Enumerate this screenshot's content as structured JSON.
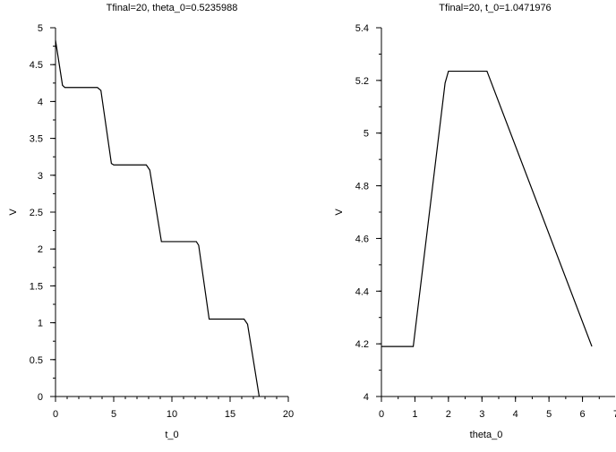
{
  "chart_data": [
    {
      "type": "line",
      "title": "Tfinal=20, theta_0=0.5235988",
      "xlabel": "t_0",
      "ylabel": "V",
      "xlim": [
        0,
        20
      ],
      "ylim": [
        0,
        5
      ],
      "xticks": [
        0,
        5,
        10,
        15,
        20
      ],
      "xtick_labels": [
        "0",
        "5",
        "10",
        "15",
        "20"
      ],
      "yticks": [
        0,
        0.5,
        1,
        1.5,
        2,
        2.5,
        3,
        3.5,
        4,
        4.5,
        5
      ],
      "ytick_labels": [
        "0",
        "0.5",
        "1",
        "1.5",
        "2",
        "2.5",
        "3",
        "3.5",
        "4",
        "4.5",
        "5"
      ],
      "grid": false,
      "series": [
        {
          "x": [
            0,
            0.6,
            0.8,
            1.0,
            3.6,
            3.9,
            4.8,
            5.0,
            7.8,
            8.1,
            9.1,
            9.3,
            12.1,
            12.3,
            13.2,
            13.5,
            16.2,
            16.5,
            17.5
          ],
          "y": [
            4.83,
            4.22,
            4.19,
            4.19,
            4.19,
            4.15,
            3.16,
            3.14,
            3.14,
            3.07,
            2.1,
            2.1,
            2.1,
            2.05,
            1.05,
            1.05,
            1.05,
            0.98,
            0
          ]
        }
      ]
    },
    {
      "type": "line",
      "title": "Tfinal=20, t_0=1.0471976",
      "xlabel": "theta_0",
      "ylabel": "V",
      "xlim": [
        0,
        7
      ],
      "ylim": [
        4,
        5.4
      ],
      "xticks": [
        0,
        1,
        2,
        3,
        4,
        5,
        6,
        7
      ],
      "xtick_labels": [
        "0",
        "1",
        "2",
        "3",
        "4",
        "5",
        "6",
        "7"
      ],
      "yticks": [
        4,
        4.2,
        4.4,
        4.6,
        4.8,
        5,
        5.2,
        5.4
      ],
      "ytick_labels": [
        "4",
        "4.2",
        "4.4",
        "4.6",
        "4.8",
        "5",
        "5.2",
        "5.4"
      ],
      "grid": false,
      "series": [
        {
          "x": [
            0,
            0.95,
            1.9,
            2.0,
            3.15,
            6.28
          ],
          "y": [
            4.19,
            4.19,
            5.19,
            5.235,
            5.235,
            4.19
          ]
        }
      ]
    }
  ]
}
